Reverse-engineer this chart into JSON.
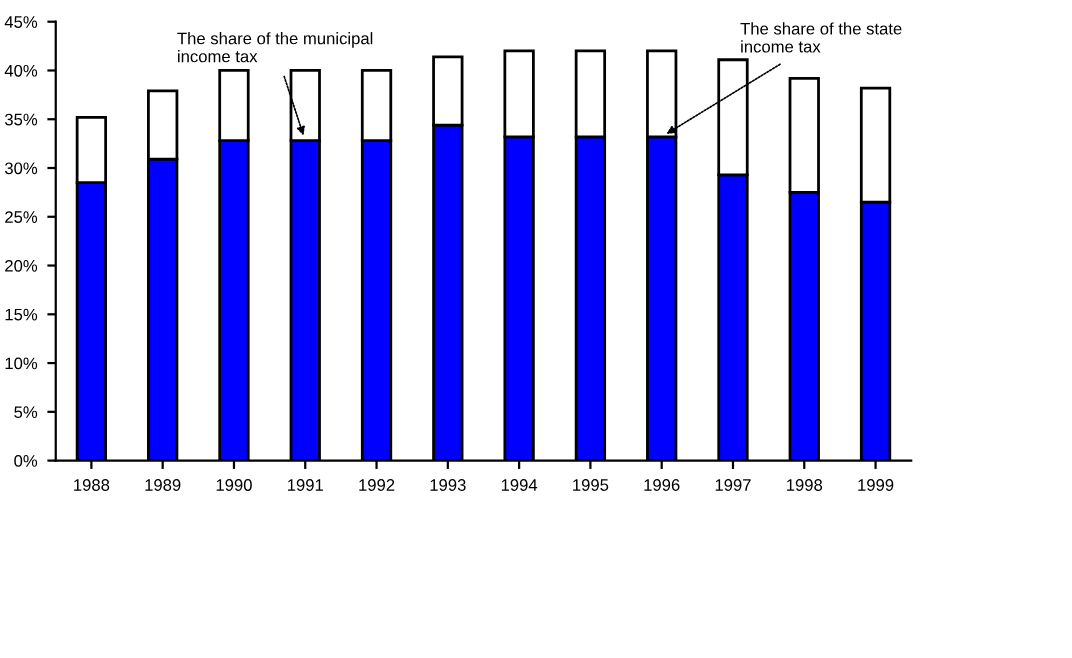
{
  "chart_data": {
    "type": "bar",
    "stacked": true,
    "categories": [
      "1988",
      "1989",
      "1990",
      "1991",
      "1992",
      "1993",
      "1994",
      "1995",
      "1996",
      "1997",
      "1998",
      "1999"
    ],
    "series": [
      {
        "color": "#0000ff",
        "values": [
          28.5,
          30.9,
          32.8,
          32.8,
          32.8,
          34.4,
          33.2,
          33.2,
          33.2,
          29.3,
          27.5,
          26.5
        ]
      },
      {
        "color": "#ffffff",
        "values": [
          6.7,
          7.0,
          7.2,
          7.2,
          7.2,
          7.0,
          8.8,
          8.8,
          8.8,
          11.8,
          11.7,
          11.7
        ]
      }
    ],
    "ylim": [
      0,
      45
    ],
    "yticks": [
      {
        "value": 0,
        "label": "0%"
      },
      {
        "value": 5,
        "label": "5%"
      },
      {
        "value": 10,
        "label": "10%"
      },
      {
        "value": 15,
        "label": "15%"
      },
      {
        "value": 20,
        "label": "20%"
      },
      {
        "value": 25,
        "label": "25%"
      },
      {
        "value": 30,
        "label": "30%"
      },
      {
        "value": 35,
        "label": "35%"
      },
      {
        "value": 40,
        "label": "40%"
      },
      {
        "value": 45,
        "label": "45%"
      }
    ],
    "annotations": [
      {
        "text": "The share of the municipal\nincome tax",
        "x": "1991",
        "y": 32.8
      },
      {
        "text": "The share of the state\nincome tax",
        "x": "1996",
        "y": 33.2
      }
    ],
    "grid": false,
    "legend": false
  }
}
